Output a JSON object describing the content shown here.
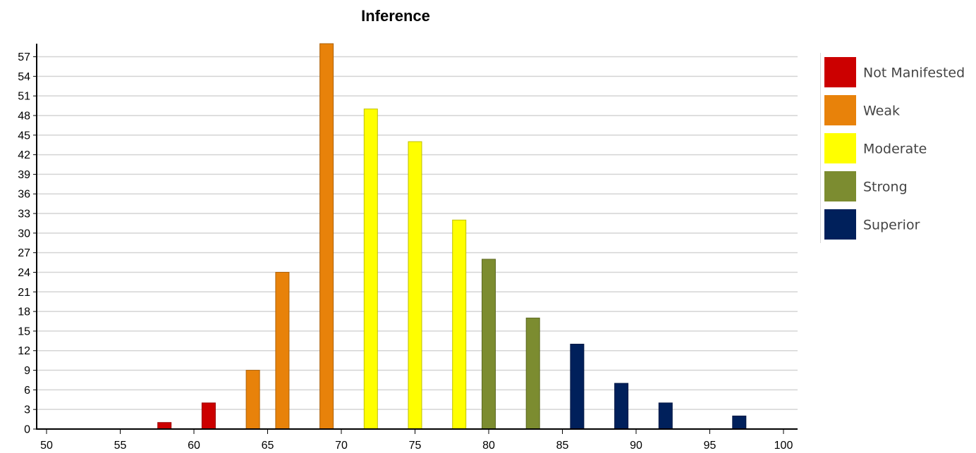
{
  "chart_data": {
    "type": "bar",
    "title": "Inference",
    "xlabel": "",
    "ylabel": "",
    "xlim": [
      50,
      100
    ],
    "ylim": [
      0,
      59
    ],
    "x_ticks": [
      50,
      55,
      60,
      65,
      70,
      75,
      80,
      85,
      90,
      95,
      100
    ],
    "y_ticks": [
      0,
      3,
      6,
      9,
      12,
      15,
      18,
      21,
      24,
      27,
      30,
      33,
      36,
      39,
      42,
      45,
      48,
      51,
      54,
      57
    ],
    "grid": true,
    "legend_position": "right",
    "series": [
      {
        "name": "Not Manifested",
        "color": "#cc0000",
        "points": [
          {
            "x": 58,
            "y": 1
          },
          {
            "x": 61,
            "y": 4
          }
        ]
      },
      {
        "name": "Weak",
        "color": "#e8820a",
        "points": [
          {
            "x": 64,
            "y": 9
          },
          {
            "x": 66,
            "y": 24
          },
          {
            "x": 69,
            "y": 59
          }
        ]
      },
      {
        "name": "Moderate",
        "color": "#ffff00",
        "points": [
          {
            "x": 72,
            "y": 49
          },
          {
            "x": 75,
            "y": 44
          },
          {
            "x": 78,
            "y": 32
          }
        ]
      },
      {
        "name": "Strong",
        "color": "#7c8c30",
        "points": [
          {
            "x": 80,
            "y": 26
          },
          {
            "x": 83,
            "y": 17
          }
        ]
      },
      {
        "name": "Superior",
        "color": "#00205b",
        "points": [
          {
            "x": 86,
            "y": 13
          },
          {
            "x": 89,
            "y": 7
          },
          {
            "x": 92,
            "y": 4
          },
          {
            "x": 97,
            "y": 2
          }
        ]
      }
    ]
  }
}
